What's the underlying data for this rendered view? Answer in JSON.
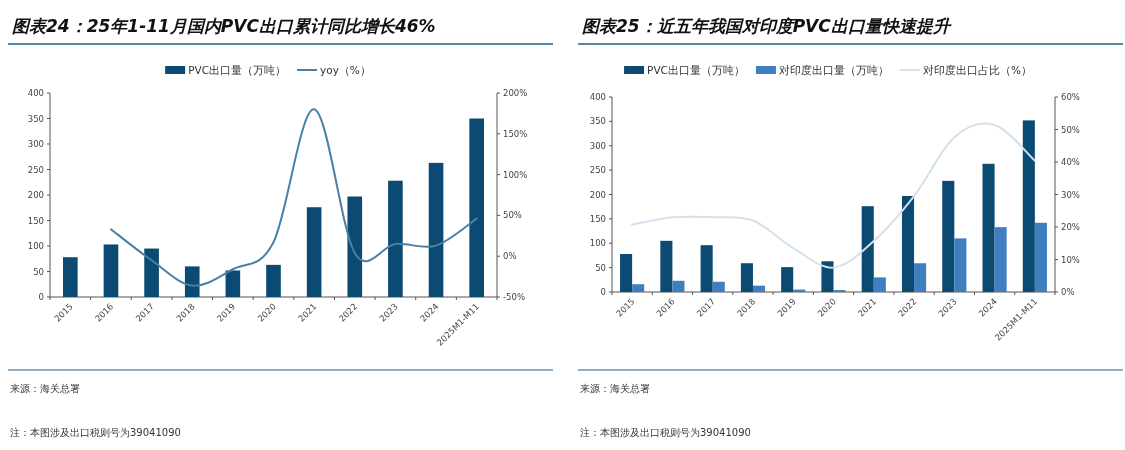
{
  "chart_data": [
    {
      "type": "bar",
      "title": "图表24：25年1-11月国内PVC出口累计同比增长46%",
      "categories": [
        "2015",
        "2016",
        "2017",
        "2018",
        "2019",
        "2020",
        "2021",
        "2022",
        "2023",
        "2024",
        "2025M1-M11"
      ],
      "series": [
        {
          "name": "PVC出口量（万吨）",
          "color": "#0b4a72",
          "values": [
            78,
            103,
            95,
            60,
            52,
            63,
            176,
            197,
            228,
            263,
            350
          ]
        },
        {
          "name": "yoy（%）",
          "type": "line",
          "axis": "y2",
          "color": "#4a7fa6",
          "values": [
            null,
            33,
            -5,
            -36,
            -16,
            17,
            180,
            4,
            15,
            13,
            46
          ]
        }
      ],
      "ylim": [
        0,
        400
      ],
      "yticks": [
        0,
        50,
        100,
        150,
        200,
        250,
        300,
        350,
        400
      ],
      "y2lim": [
        -50,
        200
      ],
      "y2ticks": [
        {
          "value": -50,
          "label": "-50%"
        },
        {
          "value": 0,
          "label": "0%"
        },
        {
          "value": 50,
          "label": "50%"
        },
        {
          "value": 100,
          "label": "100%"
        },
        {
          "value": 150,
          "label": "150%"
        },
        {
          "value": 200,
          "label": "200%"
        }
      ],
      "legend": "top",
      "grid": false,
      "annotations": [
        "来源：海关总署",
        "注：本图涉及出口税则号为39041090"
      ]
    },
    {
      "type": "bar",
      "title": "图表25：近五年我国对印度PVC出口量快速提升",
      "categories": [
        "2015",
        "2016",
        "2017",
        "2018",
        "2019",
        "2020",
        "2021",
        "2022",
        "2023",
        "2024",
        "2025M1-M11"
      ],
      "series": [
        {
          "name": "PVC出口量（万吨）",
          "color": "#0b4a72",
          "values": [
            78,
            105,
            96,
            59,
            51,
            63,
            176,
            197,
            228,
            263,
            352
          ]
        },
        {
          "name": "对印度出口量（万吨）",
          "color": "#3f7fbf",
          "values": [
            16,
            23,
            21,
            13,
            5,
            4,
            30,
            59,
            110,
            133,
            142
          ]
        },
        {
          "name": "对印度出口占比（%）",
          "type": "line",
          "axis": "y2",
          "color": "#d3e1ec",
          "values": [
            20.7,
            23,
            23,
            22,
            13.5,
            7.5,
            15.7,
            29.5,
            47.6,
            51.4,
            40.4
          ]
        }
      ],
      "ylim": [
        0,
        400
      ],
      "yticks": [
        0,
        50,
        100,
        150,
        200,
        250,
        300,
        350,
        400
      ],
      "y2lim": [
        0,
        60
      ],
      "y2ticks": [
        {
          "value": 0,
          "label": "0%"
        },
        {
          "value": 10,
          "label": "10%"
        },
        {
          "value": 20,
          "label": "20%"
        },
        {
          "value": 30,
          "label": "30%"
        },
        {
          "value": 40,
          "label": "40%"
        },
        {
          "value": 50,
          "label": "50%"
        },
        {
          "value": 60,
          "label": "60%"
        }
      ],
      "legend": "top",
      "grid": false,
      "annotations": [
        "来源：海关总署",
        "注：本图涉及出口税则号为39041090"
      ]
    }
  ]
}
